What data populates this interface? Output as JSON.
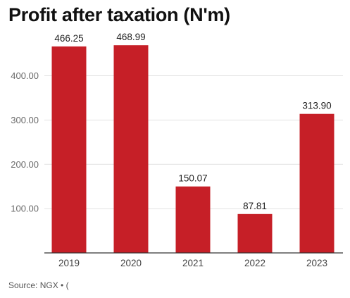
{
  "chart_data": {
    "type": "bar",
    "title": "Profit after taxation (N'm)",
    "categories": [
      "2019",
      "2020",
      "2021",
      "2022",
      "2023"
    ],
    "values": [
      466.25,
      468.99,
      150.07,
      87.81,
      313.9
    ],
    "data_labels": [
      "466.25",
      "468.99",
      "150.07",
      "87.81",
      "313.90"
    ],
    "y_ticks": [
      100,
      200,
      300,
      400
    ],
    "y_tick_labels": [
      "100.00",
      "200.00",
      "300.00",
      "400.00"
    ],
    "ylim": [
      0,
      510
    ],
    "xlabel": "",
    "ylabel": "",
    "grid": true,
    "legend": "none",
    "bar_color": "#c61f27",
    "source": "Source: NGX • ("
  }
}
